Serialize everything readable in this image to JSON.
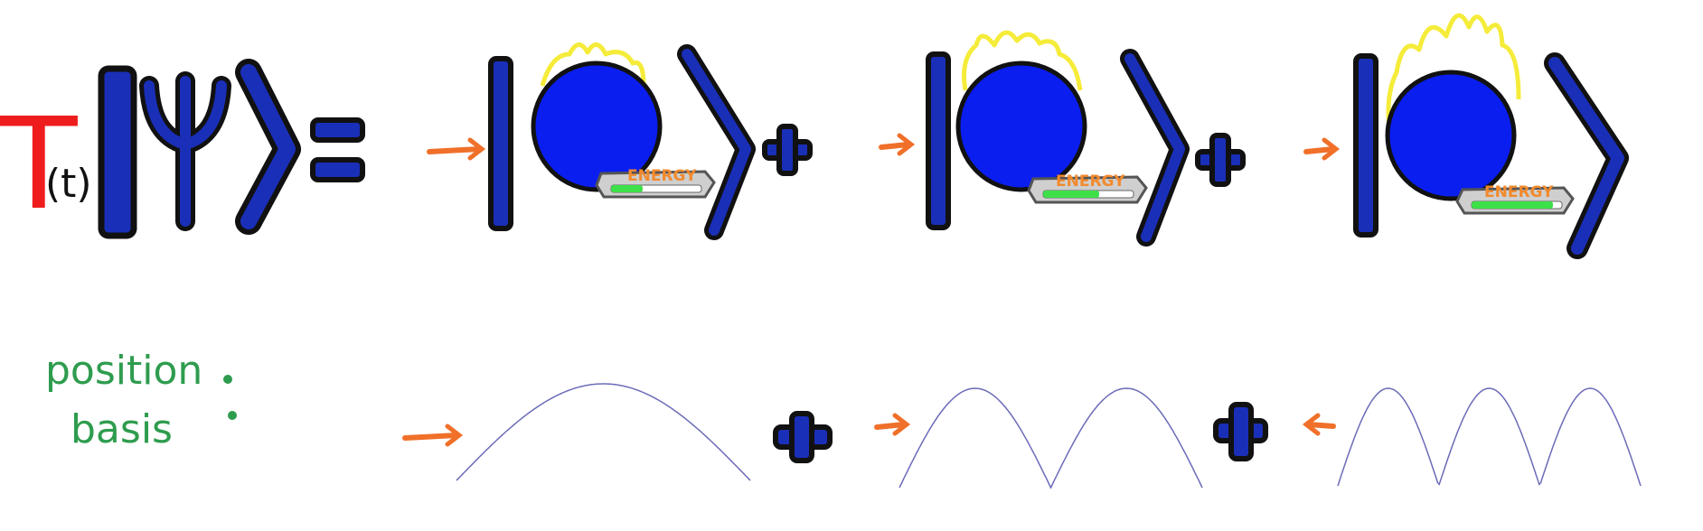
{
  "equation": {
    "operator_letter": "T",
    "operator_argument": "(t)",
    "state_symbol": "Ψ",
    "equals": "=",
    "plus": "+"
  },
  "energy_states": [
    {
      "energy_label": "ENERGY",
      "energy_level": 0.35
    },
    {
      "energy_label": "ENERGY",
      "energy_level": 0.62
    },
    {
      "energy_label": "ENERGY",
      "energy_level": 0.9
    }
  ],
  "position_basis": {
    "label_line1": "position",
    "label_line2": "basis",
    "waves": [
      {
        "half_periods": 1
      },
      {
        "half_periods": 2
      },
      {
        "half_periods": 3
      }
    ]
  },
  "colors": {
    "ket_blue": "#1a2fb8",
    "ball_blue": "#0a1ef0",
    "outline": "#111111",
    "operator_red": "#ee1c1c",
    "arrow_orange": "#f0702a",
    "flame_yellow": "#f5ec3a",
    "energy_green": "#3ee04a",
    "label_green": "#2e9c4e",
    "wave": "#6b6bb8"
  }
}
